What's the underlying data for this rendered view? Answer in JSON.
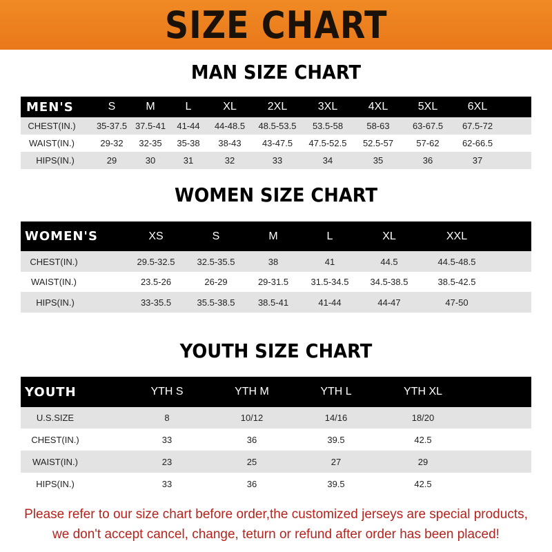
{
  "banner": {
    "title": "SIZE CHART",
    "color": "#ef8420"
  },
  "men": {
    "title": "MAN SIZE CHART",
    "header": [
      "MEN'S",
      "S",
      "M",
      "L",
      "XL",
      "2XL",
      "3XL",
      "4XL",
      "5XL",
      "6XL"
    ],
    "rows": [
      [
        "CHEST(IN.)",
        "35-37.5",
        "37.5-41",
        "41-44",
        "44-48.5",
        "48.5-53.5",
        "53.5-58",
        "58-63",
        "63-67.5",
        "67.5-72"
      ],
      [
        "WAIST(IN.)",
        "29-32",
        "32-35",
        "35-38",
        "38-43",
        "43-47.5",
        "47.5-52.5",
        "52.5-57",
        "57-62",
        "62-66.5"
      ],
      [
        "HIPS(IN.)",
        "29",
        "30",
        "31",
        "32",
        "33",
        "34",
        "35",
        "36",
        "37"
      ]
    ]
  },
  "women": {
    "title": "WOMEN SIZE CHART",
    "header": [
      "WOMEN'S",
      "XS",
      "S",
      "M",
      "L",
      "XL",
      "XXL"
    ],
    "rows": [
      [
        "CHEST(IN.)",
        "29.5-32.5",
        "32.5-35.5",
        "38",
        "41",
        "44.5",
        "44.5-48.5"
      ],
      [
        "WAIST(IN.)",
        "23.5-26",
        "26-29",
        "29-31.5",
        "31.5-34.5",
        "34.5-38.5",
        "38.5-42.5"
      ],
      [
        "HIPS(IN.)",
        "33-35.5",
        "35.5-38.5",
        "38.5-41",
        "41-44",
        "44-47",
        "47-50"
      ]
    ]
  },
  "youth": {
    "title": "YOUTH SIZE CHART",
    "header": [
      "YOUTH",
      "YTH S",
      "YTH M",
      "YTH L",
      "YTH XL"
    ],
    "rows": [
      [
        "U.S.SIZE",
        "8",
        "10/12",
        "14/16",
        "18/20"
      ],
      [
        "CHEST(IN.)",
        "33",
        "36",
        "39.5",
        "42.5"
      ],
      [
        "WAIST(IN.)",
        "23",
        "25",
        "27",
        "29"
      ],
      [
        "HIPS(IN.)",
        "33",
        "36",
        "39.5",
        "42.5"
      ]
    ]
  },
  "notice": {
    "line1": "Please refer to our size chart before order,the customized jerseys are special products,",
    "line2": "we don't accept cancel, change, teturn or refund after order has been placed!",
    "color": "#b5231c"
  }
}
